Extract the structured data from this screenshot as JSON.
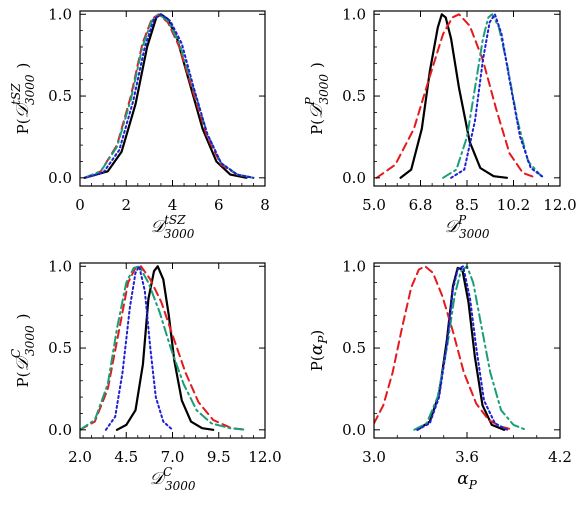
{
  "styles": {
    "black": {
      "color": "#000000",
      "dash": "",
      "width": 2.2
    },
    "red": {
      "color": "#e41a1c",
      "dash": "8,5",
      "width": 2
    },
    "green": {
      "color": "#1a9e7a",
      "dash": "9,4,2,4",
      "width": 2
    },
    "blue": {
      "color": "#1f1fd6",
      "dash": "2,3",
      "width": 2
    }
  },
  "chart_data": [
    {
      "type": "line",
      "xlabel": {
        "main": "𝒟",
        "sup": "tSZ",
        "sub": "3000"
      },
      "ylabel": {
        "pre": "P(",
        "main": "𝒟",
        "sup": "tSZ",
        "sub": "3000",
        "post": ")"
      },
      "xlim": [
        0,
        8
      ],
      "ylim": [
        -0.05,
        1.02
      ],
      "xticks": [
        "0",
        "2",
        "4",
        "6",
        "8"
      ],
      "yticks": [
        "0.0",
        "0.5",
        "1.0"
      ],
      "series": [
        {
          "style": "black",
          "x": [
            0.2,
            1.2,
            1.8,
            2.4,
            2.9,
            3.3,
            3.5,
            3.8,
            4.2,
            4.7,
            5.3,
            5.9,
            6.5,
            7.2
          ],
          "y": [
            0,
            0.04,
            0.16,
            0.45,
            0.8,
            0.98,
            1.0,
            0.97,
            0.85,
            0.6,
            0.3,
            0.1,
            0.02,
            0
          ]
        },
        {
          "style": "red",
          "x": [
            0.2,
            0.9,
            1.6,
            2.2,
            2.7,
            3.1,
            3.4,
            3.8,
            4.3,
            4.9,
            5.5,
            6.1,
            6.8,
            7.5
          ],
          "y": [
            0,
            0.04,
            0.2,
            0.5,
            0.82,
            0.97,
            1.0,
            0.95,
            0.8,
            0.52,
            0.25,
            0.08,
            0.02,
            0
          ]
        },
        {
          "style": "green",
          "x": [
            0.2,
            0.9,
            1.6,
            2.2,
            2.7,
            3.1,
            3.4,
            3.8,
            4.3,
            4.9,
            5.5,
            6.1,
            6.8,
            7.5
          ],
          "y": [
            0,
            0.04,
            0.19,
            0.48,
            0.8,
            0.96,
            1.0,
            0.96,
            0.82,
            0.55,
            0.27,
            0.09,
            0.02,
            0
          ]
        },
        {
          "style": "blue",
          "x": [
            0.2,
            1.0,
            1.7,
            2.3,
            2.8,
            3.2,
            3.5,
            3.9,
            4.4,
            4.9,
            5.5,
            6.1,
            6.8,
            7.5
          ],
          "y": [
            0,
            0.03,
            0.17,
            0.47,
            0.8,
            0.97,
            1.0,
            0.96,
            0.82,
            0.56,
            0.27,
            0.09,
            0.02,
            0
          ]
        }
      ]
    },
    {
      "type": "line",
      "xlabel": {
        "main": "𝒟",
        "sup": "P",
        "sub": "3000"
      },
      "ylabel": {
        "pre": "P(",
        "main": "𝒟",
        "sup": "P",
        "sub": "3000",
        "post": ")"
      },
      "xlim": [
        5.0,
        12.0
      ],
      "ylim": [
        -0.05,
        1.02
      ],
      "xticks": [
        "5.0",
        "6.8",
        "8.5",
        "10.2",
        "12.0"
      ],
      "yticks": [
        "0.0",
        "0.5",
        "1.0"
      ],
      "series": [
        {
          "style": "black",
          "x": [
            6.0,
            6.4,
            6.8,
            7.1,
            7.4,
            7.55,
            7.7,
            7.9,
            8.2,
            8.6,
            9.0,
            9.5,
            10.0
          ],
          "y": [
            0,
            0.05,
            0.3,
            0.65,
            0.92,
            1.0,
            0.98,
            0.85,
            0.55,
            0.22,
            0.06,
            0.01,
            0
          ]
        },
        {
          "style": "red",
          "x": [
            5.1,
            5.8,
            6.5,
            7.1,
            7.6,
            7.95,
            8.2,
            8.6,
            9.1,
            9.6,
            10.1,
            10.6,
            11.1
          ],
          "y": [
            0,
            0.08,
            0.3,
            0.62,
            0.88,
            0.98,
            1.0,
            0.93,
            0.72,
            0.42,
            0.15,
            0.03,
            0
          ]
        },
        {
          "style": "green",
          "x": [
            7.6,
            8.1,
            8.5,
            8.8,
            9.1,
            9.3,
            9.45,
            9.7,
            10.0,
            10.4,
            10.8,
            11.3
          ],
          "y": [
            0,
            0.05,
            0.25,
            0.55,
            0.85,
            0.98,
            1.0,
            0.92,
            0.7,
            0.35,
            0.1,
            0.01
          ]
        },
        {
          "style": "blue",
          "x": [
            7.9,
            8.4,
            8.8,
            9.1,
            9.35,
            9.55,
            9.8,
            10.1,
            10.5,
            10.9,
            11.4
          ],
          "y": [
            0,
            0.05,
            0.35,
            0.72,
            0.95,
            1.0,
            0.88,
            0.6,
            0.25,
            0.06,
            0
          ]
        }
      ]
    },
    {
      "type": "line",
      "xlabel": {
        "main": "𝒟",
        "sup": "C",
        "sub": "3000"
      },
      "ylabel": {
        "pre": "P(",
        "main": "𝒟",
        "sup": "C",
        "sub": "3000",
        "post": ")"
      },
      "xlim": [
        2.0,
        12.0
      ],
      "ylim": [
        -0.05,
        1.02
      ],
      "xticks": [
        "2.0",
        "4.5",
        "7.0",
        "9.5",
        "12.0"
      ],
      "yticks": [
        "0.0",
        "0.5",
        "1.0"
      ],
      "series": [
        {
          "style": "black",
          "x": [
            4.0,
            4.5,
            5.0,
            5.4,
            5.7,
            6.0,
            6.2,
            6.5,
            6.8,
            7.1,
            7.5,
            8.0,
            8.6,
            9.2
          ],
          "y": [
            0,
            0.03,
            0.12,
            0.4,
            0.8,
            0.97,
            1.0,
            0.92,
            0.7,
            0.42,
            0.18,
            0.05,
            0.01,
            0
          ]
        },
        {
          "style": "red",
          "x": [
            2.0,
            2.8,
            3.5,
            4.1,
            4.6,
            5.0,
            5.3,
            5.8,
            6.4,
            7.0,
            7.7,
            8.4,
            9.2,
            10.2,
            11.0
          ],
          "y": [
            0,
            0.05,
            0.25,
            0.6,
            0.9,
            0.99,
            1.0,
            0.92,
            0.78,
            0.58,
            0.35,
            0.17,
            0.06,
            0.01,
            0
          ]
        },
        {
          "style": "green",
          "x": [
            2.0,
            2.8,
            3.5,
            4.0,
            4.5,
            4.9,
            5.2,
            5.7,
            6.3,
            6.9,
            7.6,
            8.3,
            9.1,
            10.1,
            11.0
          ],
          "y": [
            0,
            0.06,
            0.28,
            0.62,
            0.9,
            0.99,
            1.0,
            0.9,
            0.72,
            0.5,
            0.28,
            0.12,
            0.04,
            0.01,
            0
          ]
        },
        {
          "style": "blue",
          "x": [
            3.4,
            3.9,
            4.3,
            4.7,
            5.0,
            5.2,
            5.5,
            5.8,
            6.1,
            6.5,
            7.0
          ],
          "y": [
            0,
            0.08,
            0.35,
            0.75,
            0.96,
            1.0,
            0.85,
            0.5,
            0.2,
            0.05,
            0
          ]
        }
      ]
    },
    {
      "type": "line",
      "xlabel": {
        "main": "α",
        "sub": "P"
      },
      "ylabel": {
        "pre": "P(",
        "main": "α",
        "sub": "P",
        "post": ")"
      },
      "xlim": [
        3.0,
        4.2
      ],
      "ylim": [
        -0.05,
        1.02
      ],
      "xticks": [
        "3.0",
        "3.6",
        "4.2"
      ],
      "yticks": [
        "0.0",
        "0.5",
        "1.0"
      ],
      "series": [
        {
          "style": "black",
          "x": [
            3.28,
            3.36,
            3.42,
            3.47,
            3.51,
            3.54,
            3.57,
            3.61,
            3.65,
            3.7,
            3.76,
            3.84
          ],
          "y": [
            0,
            0.05,
            0.22,
            0.55,
            0.88,
            0.99,
            0.98,
            0.78,
            0.45,
            0.15,
            0.03,
            0
          ]
        },
        {
          "style": "red",
          "x": [
            3.0,
            3.06,
            3.12,
            3.18,
            3.24,
            3.29,
            3.33,
            3.38,
            3.44,
            3.51,
            3.58,
            3.66,
            3.74,
            3.82,
            3.9
          ],
          "y": [
            0.04,
            0.15,
            0.35,
            0.62,
            0.87,
            0.98,
            1.0,
            0.96,
            0.82,
            0.6,
            0.35,
            0.16,
            0.06,
            0.02,
            0
          ]
        },
        {
          "style": "green",
          "x": [
            3.26,
            3.34,
            3.41,
            3.47,
            3.52,
            3.56,
            3.6,
            3.64,
            3.69,
            3.75,
            3.82,
            3.9,
            3.98
          ],
          "y": [
            0,
            0.04,
            0.2,
            0.5,
            0.82,
            0.97,
            1.0,
            0.9,
            0.65,
            0.35,
            0.12,
            0.03,
            0
          ]
        },
        {
          "style": "blue",
          "x": [
            3.28,
            3.36,
            3.42,
            3.47,
            3.51,
            3.54,
            3.575,
            3.62,
            3.66,
            3.71,
            3.78,
            3.86
          ],
          "y": [
            0,
            0.04,
            0.2,
            0.52,
            0.86,
            0.98,
            1.0,
            0.8,
            0.5,
            0.18,
            0.04,
            0
          ]
        }
      ]
    }
  ]
}
